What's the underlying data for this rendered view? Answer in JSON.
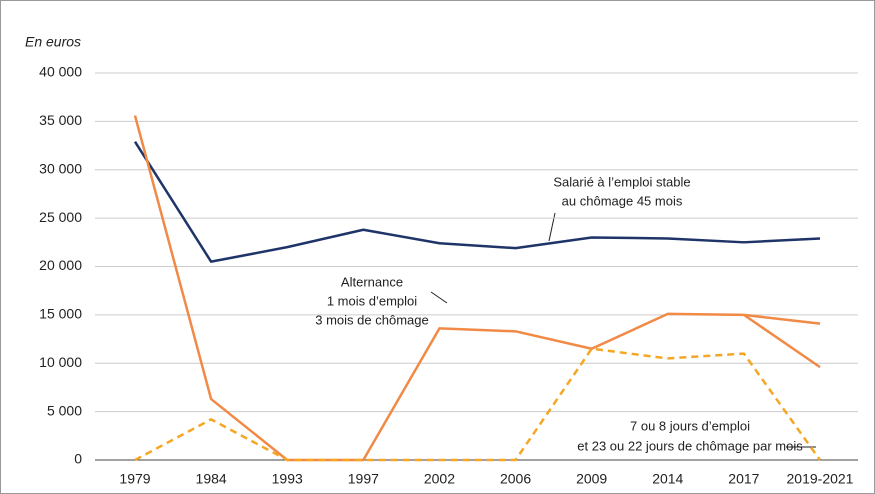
{
  "chart_data": {
    "type": "line",
    "y_axis_label": "En euros",
    "categories": [
      "1979",
      "1984",
      "1993",
      "1997",
      "2002",
      "2006",
      "2009",
      "2014",
      "2017",
      "2019-2021"
    ],
    "series": [
      {
        "color": "#1f3468",
        "dash": false,
        "values": [
          32900,
          20500,
          22000,
          23800,
          22400,
          21900,
          23000,
          22900,
          22500,
          22900
        ],
        "annotation": [
          "Salarié à l’emploi stable",
          "au chômage 45 mois"
        ]
      },
      {
        "color": "#f08a46",
        "dash": false,
        "values": [
          35600,
          6300,
          0,
          0,
          13600,
          13300,
          11500,
          15100,
          15000,
          14100
        ],
        "annotation": [
          "Alternance",
          "1 mois d’emploi",
          "3 mois de chômage"
        ]
      },
      {
        "color": "#f08a46",
        "dash": false,
        "values": [
          null,
          null,
          null,
          null,
          null,
          null,
          null,
          null,
          15000,
          9600
        ]
      },
      {
        "color": "#f5a623",
        "dash": true,
        "values": [
          0,
          4200,
          0,
          0,
          0,
          0,
          11500,
          10500,
          11000,
          0
        ],
        "annotation": [
          "7 ou 8 jours d’emploi",
          "et 23 ou 22 jours de chômage par mois"
        ]
      }
    ],
    "ylim": [
      0,
      40000
    ],
    "yticks": [
      0,
      {
        "value": 5000,
        "label": "5 000"
      },
      {
        "value": 10000,
        "label": "10 000"
      },
      {
        "value": 15000,
        "label": "15 000"
      },
      {
        "value": 20000,
        "label": "20 000"
      },
      {
        "value": 25000,
        "label": "25 000"
      },
      {
        "value": 30000,
        "label": "30 000"
      },
      {
        "value": 35000,
        "label": "35 000"
      },
      {
        "value": 40000,
        "label": "40 000"
      }
    ],
    "grid": true
  }
}
